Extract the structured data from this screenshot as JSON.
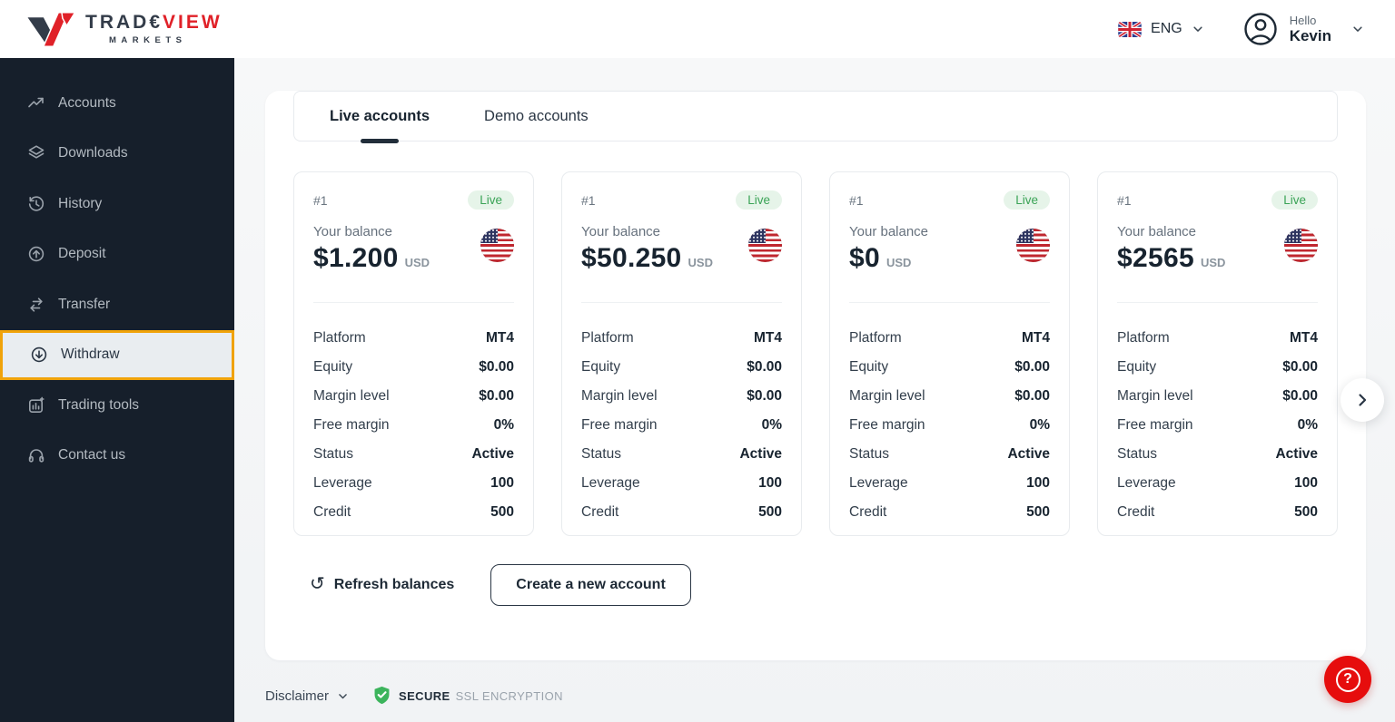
{
  "header": {
    "logo": {
      "text_dark": "TRAD€",
      "text_red": "VIEW",
      "subtext": "MARKETS"
    },
    "language": {
      "flag": "uk-flag-icon",
      "code": "ENG"
    },
    "user": {
      "greeting": "Hello",
      "name": "Kevin"
    }
  },
  "sidebar": {
    "items": [
      {
        "label": "Accounts",
        "icon": "trending-up-icon",
        "active": false
      },
      {
        "label": "Downloads",
        "icon": "layers-icon",
        "active": false
      },
      {
        "label": "History",
        "icon": "history-clock-icon",
        "active": false
      },
      {
        "label": "Deposit",
        "icon": "arrow-up-circle-icon",
        "active": false
      },
      {
        "label": "Transfer",
        "icon": "swap-arrows-icon",
        "active": false
      },
      {
        "label": "Withdraw",
        "icon": "arrow-down-circle-icon",
        "active": true
      },
      {
        "label": "Trading tools",
        "icon": "chart-tools-icon",
        "active": false
      },
      {
        "label": "Contact us",
        "icon": "headset-icon",
        "active": false
      }
    ]
  },
  "main": {
    "tabs": [
      {
        "label": "Live accounts",
        "active": true
      },
      {
        "label": "Demo accounts",
        "active": false
      }
    ],
    "accounts": [
      {
        "number": "#1",
        "badge": "Live",
        "balance_label": "Your balance",
        "balance": "$1.200",
        "currency": "USD",
        "flag": "us-flag-icon",
        "details": [
          {
            "label": "Platform",
            "value": "MT4"
          },
          {
            "label": "Equity",
            "value": "$0.00"
          },
          {
            "label": "Margin level",
            "value": "$0.00"
          },
          {
            "label": "Free margin",
            "value": "0%"
          },
          {
            "label": "Status",
            "value": "Active"
          },
          {
            "label": "Leverage",
            "value": "100"
          },
          {
            "label": "Credit",
            "value": "500"
          }
        ]
      },
      {
        "number": "#1",
        "badge": "Live",
        "balance_label": "Your balance",
        "balance": "$50.250",
        "currency": "USD",
        "flag": "us-flag-icon",
        "details": [
          {
            "label": "Platform",
            "value": "MT4"
          },
          {
            "label": "Equity",
            "value": "$0.00"
          },
          {
            "label": "Margin level",
            "value": "$0.00"
          },
          {
            "label": "Free margin",
            "value": "0%"
          },
          {
            "label": "Status",
            "value": "Active"
          },
          {
            "label": "Leverage",
            "value": "100"
          },
          {
            "label": "Credit",
            "value": "500"
          }
        ]
      },
      {
        "number": "#1",
        "badge": "Live",
        "balance_label": "Your balance",
        "balance": "$0",
        "currency": "USD",
        "flag": "us-flag-icon",
        "details": [
          {
            "label": "Platform",
            "value": "MT4"
          },
          {
            "label": "Equity",
            "value": "$0.00"
          },
          {
            "label": "Margin level",
            "value": "$0.00"
          },
          {
            "label": "Free margin",
            "value": "0%"
          },
          {
            "label": "Status",
            "value": "Active"
          },
          {
            "label": "Leverage",
            "value": "100"
          },
          {
            "label": "Credit",
            "value": "500"
          }
        ]
      },
      {
        "number": "#1",
        "badge": "Live",
        "balance_label": "Your balance",
        "balance": "$2565",
        "currency": "USD",
        "flag": "us-flag-icon",
        "details": [
          {
            "label": "Platform",
            "value": "MT4"
          },
          {
            "label": "Equity",
            "value": "$0.00"
          },
          {
            "label": "Margin level",
            "value": "$0.00"
          },
          {
            "label": "Free margin",
            "value": "0%"
          },
          {
            "label": "Status",
            "value": "Active"
          },
          {
            "label": "Leverage",
            "value": "100"
          },
          {
            "label": "Credit",
            "value": "500"
          }
        ]
      }
    ],
    "actions": {
      "refresh": "Refresh balances",
      "create": "Create a new account"
    }
  },
  "footer": {
    "disclaimer": "Disclaimer",
    "secure": "SECURE",
    "ssl": "SSL ENCRYPTION"
  },
  "help_button": "?",
  "colors": {
    "brand_red": "#e02128",
    "sidebar_bg": "#161f2b",
    "active_item_border": "#f0a30a",
    "active_item_bg": "#e9edf0",
    "live_badge_text": "#3aa356",
    "live_badge_bg": "#e6f4e9",
    "secure_green": "#3cb45c",
    "help_button_bg": "#e60d0d",
    "text_dark": "#1d2935",
    "page_bg": "#f3f4f6"
  }
}
